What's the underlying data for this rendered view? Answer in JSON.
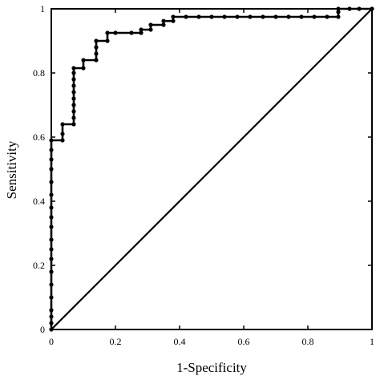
{
  "chart_data": {
    "type": "line",
    "title": "",
    "xlabel": "1-Specificity",
    "ylabel": "Sensitivity",
    "xlim": [
      0,
      1
    ],
    "ylim": [
      0,
      1
    ],
    "xticks": [
      0,
      0.2,
      0.4,
      0.6,
      0.8,
      1
    ],
    "yticks": [
      0,
      0.2,
      0.4,
      0.6,
      0.8,
      1
    ],
    "xtick_labels": [
      "0",
      "0.2",
      "0.4",
      "0.6",
      "0.8",
      "1"
    ],
    "ytick_labels": [
      "0",
      "0.2",
      "0.4",
      "0.6",
      "0.8",
      "1"
    ],
    "grid": false,
    "series": [
      {
        "style": "step-line-with-markers",
        "color": "#000000",
        "points": [
          [
            0,
            0
          ],
          [
            0,
            0.02
          ],
          [
            0,
            0.04
          ],
          [
            0,
            0.06
          ],
          [
            0,
            0.1
          ],
          [
            0,
            0.14
          ],
          [
            0,
            0.18
          ],
          [
            0,
            0.22
          ],
          [
            0,
            0.25
          ],
          [
            0,
            0.28
          ],
          [
            0,
            0.32
          ],
          [
            0,
            0.35
          ],
          [
            0,
            0.38
          ],
          [
            0,
            0.42
          ],
          [
            0,
            0.46
          ],
          [
            0,
            0.5
          ],
          [
            0,
            0.53
          ],
          [
            0,
            0.56
          ],
          [
            0,
            0.59
          ],
          [
            0.035,
            0.59
          ],
          [
            0.035,
            0.61
          ],
          [
            0.035,
            0.64
          ],
          [
            0.07,
            0.64
          ],
          [
            0.07,
            0.66
          ],
          [
            0.07,
            0.68
          ],
          [
            0.07,
            0.7
          ],
          [
            0.07,
            0.72
          ],
          [
            0.07,
            0.74
          ],
          [
            0.07,
            0.76
          ],
          [
            0.07,
            0.78
          ],
          [
            0.07,
            0.8
          ],
          [
            0.07,
            0.815
          ],
          [
            0.1,
            0.815
          ],
          [
            0.1,
            0.84
          ],
          [
            0.14,
            0.84
          ],
          [
            0.14,
            0.86
          ],
          [
            0.14,
            0.88
          ],
          [
            0.14,
            0.9
          ],
          [
            0.175,
            0.9
          ],
          [
            0.175,
            0.925
          ],
          [
            0.2,
            0.925
          ],
          [
            0.25,
            0.925
          ],
          [
            0.28,
            0.925
          ],
          [
            0.28,
            0.935
          ],
          [
            0.31,
            0.935
          ],
          [
            0.31,
            0.95
          ],
          [
            0.35,
            0.95
          ],
          [
            0.35,
            0.962
          ],
          [
            0.38,
            0.962
          ],
          [
            0.38,
            0.975
          ],
          [
            0.42,
            0.975
          ],
          [
            0.46,
            0.975
          ],
          [
            0.5,
            0.975
          ],
          [
            0.54,
            0.975
          ],
          [
            0.58,
            0.975
          ],
          [
            0.62,
            0.975
          ],
          [
            0.66,
            0.975
          ],
          [
            0.7,
            0.975
          ],
          [
            0.74,
            0.975
          ],
          [
            0.78,
            0.975
          ],
          [
            0.82,
            0.975
          ],
          [
            0.86,
            0.975
          ],
          [
            0.895,
            0.975
          ],
          [
            0.895,
            0.99
          ],
          [
            0.895,
            1
          ],
          [
            0.93,
            1
          ],
          [
            0.96,
            1
          ],
          [
            1,
            1
          ]
        ]
      },
      {
        "style": "reference-diagonal",
        "color": "#000000",
        "points": [
          [
            0,
            0
          ],
          [
            1,
            1
          ]
        ]
      }
    ]
  }
}
